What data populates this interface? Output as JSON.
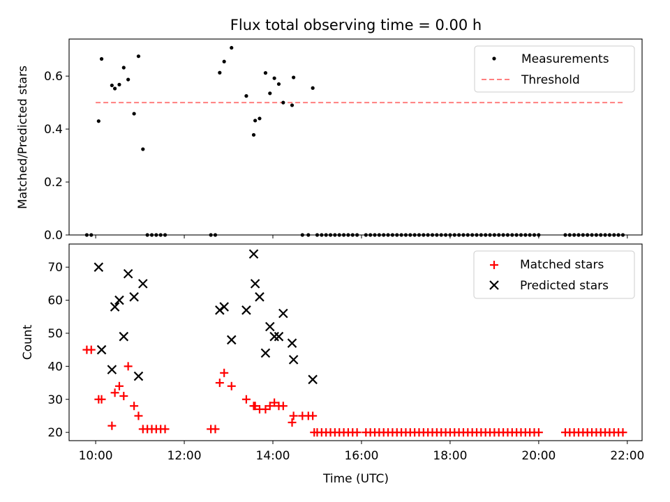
{
  "figure_title": "Flux total observing time = 0.00 h",
  "colors": {
    "measurements": "#000000",
    "threshold": "#ff7f7f",
    "matched": "#ff0000",
    "predicted": "#000000",
    "axes": "#000000"
  },
  "chart_data": [
    {
      "type": "scatter",
      "title": "Flux total observing time = 0.00 h",
      "xlabel": "",
      "ylabel": "Matched/Predicted stars",
      "x_unit": "hours UTC",
      "xlim": [
        "09:24",
        "22:20"
      ],
      "ylim": [
        0,
        0.74
      ],
      "y_ticks": [
        "0.0",
        "0.2",
        "0.4",
        "0.6"
      ],
      "grid": false,
      "legend_position": "top-right",
      "legend": [
        "Measurements",
        "Threshold"
      ],
      "series": [
        {
          "name": "Measurements",
          "marker": "dot",
          "points": [
            [
              "09:48",
              0.0
            ],
            [
              "09:54",
              0.0
            ],
            [
              "10:04",
              0.43
            ],
            [
              "10:08",
              0.665
            ],
            [
              "10:22",
              0.565
            ],
            [
              "10:26",
              0.553
            ],
            [
              "10:32",
              0.568
            ],
            [
              "10:38",
              0.632
            ],
            [
              "10:44",
              0.587
            ],
            [
              "10:52",
              0.458
            ],
            [
              "10:58",
              0.675
            ],
            [
              "11:04",
              0.324
            ],
            [
              "11:10",
              0.0
            ],
            [
              "11:16",
              0.0
            ],
            [
              "11:22",
              0.0
            ],
            [
              "11:28",
              0.0
            ],
            [
              "11:34",
              0.0
            ],
            [
              "12:36",
              0.0
            ],
            [
              "12:42",
              0.0
            ],
            [
              "12:48",
              0.613
            ],
            [
              "12:54",
              0.655
            ],
            [
              "13:04",
              0.707
            ],
            [
              "13:24",
              0.525
            ],
            [
              "13:34",
              0.378
            ],
            [
              "13:36",
              0.432
            ],
            [
              "13:42",
              0.44
            ],
            [
              "13:50",
              0.612
            ],
            [
              "13:56",
              0.535
            ],
            [
              "14:02",
              0.592
            ],
            [
              "14:08",
              0.57
            ],
            [
              "14:14",
              0.5
            ],
            [
              "14:26",
              0.49
            ],
            [
              "14:28",
              0.595
            ],
            [
              "14:40",
              0.0
            ],
            [
              "14:48",
              0.0
            ],
            [
              "14:54",
              0.555
            ],
            [
              "15:00",
              0.0
            ],
            [
              "15:06",
              0.0
            ],
            [
              "15:12",
              0.0
            ],
            [
              "15:18",
              0.0
            ],
            [
              "15:24",
              0.0
            ],
            [
              "15:30",
              0.0
            ],
            [
              "15:36",
              0.0
            ],
            [
              "15:42",
              0.0
            ],
            [
              "15:48",
              0.0
            ],
            [
              "15:54",
              0.0
            ],
            [
              "16:06",
              0.0
            ],
            [
              "16:12",
              0.0
            ],
            [
              "16:18",
              0.0
            ],
            [
              "16:24",
              0.0
            ],
            [
              "16:30",
              0.0
            ],
            [
              "16:36",
              0.0
            ],
            [
              "16:42",
              0.0
            ],
            [
              "16:48",
              0.0
            ],
            [
              "16:54",
              0.0
            ],
            [
              "17:00",
              0.0
            ],
            [
              "17:06",
              0.0
            ],
            [
              "17:12",
              0.0
            ],
            [
              "17:18",
              0.0
            ],
            [
              "17:24",
              0.0
            ],
            [
              "17:30",
              0.0
            ],
            [
              "17:36",
              0.0
            ],
            [
              "17:42",
              0.0
            ],
            [
              "17:48",
              0.0
            ],
            [
              "17:54",
              0.0
            ],
            [
              "18:00",
              0.0
            ],
            [
              "18:06",
              0.0
            ],
            [
              "18:12",
              0.0
            ],
            [
              "18:18",
              0.0
            ],
            [
              "18:24",
              0.0
            ],
            [
              "18:30",
              0.0
            ],
            [
              "18:36",
              0.0
            ],
            [
              "18:42",
              0.0
            ],
            [
              "18:48",
              0.0
            ],
            [
              "18:54",
              0.0
            ],
            [
              "19:00",
              0.0
            ],
            [
              "19:06",
              0.0
            ],
            [
              "19:12",
              0.0
            ],
            [
              "19:18",
              0.0
            ],
            [
              "19:24",
              0.0
            ],
            [
              "19:30",
              0.0
            ],
            [
              "19:36",
              0.0
            ],
            [
              "19:42",
              0.0
            ],
            [
              "19:48",
              0.0
            ],
            [
              "19:54",
              0.0
            ],
            [
              "20:00",
              0.0
            ],
            [
              "20:36",
              0.0
            ],
            [
              "20:42",
              0.0
            ],
            [
              "20:48",
              0.0
            ],
            [
              "20:54",
              0.0
            ],
            [
              "21:00",
              0.0
            ],
            [
              "21:06",
              0.0
            ],
            [
              "21:12",
              0.0
            ],
            [
              "21:18",
              0.0
            ],
            [
              "21:24",
              0.0
            ],
            [
              "21:30",
              0.0
            ],
            [
              "21:36",
              0.0
            ],
            [
              "21:42",
              0.0
            ],
            [
              "21:48",
              0.0
            ],
            [
              "21:54",
              0.0
            ]
          ]
        },
        {
          "name": "Threshold",
          "style": "dashed",
          "points": [
            [
              "10:00",
              0.5
            ],
            [
              "21:54",
              0.5
            ]
          ]
        }
      ]
    },
    {
      "type": "scatter",
      "title": "",
      "xlabel": "Time (UTC)",
      "ylabel": "Count",
      "x_unit": "hours UTC",
      "xlim": [
        "09:24",
        "22:20"
      ],
      "ylim": [
        17.5,
        77
      ],
      "y_ticks": [
        "20",
        "30",
        "40",
        "50",
        "60",
        "70"
      ],
      "x_ticks": [
        "10:00",
        "12:00",
        "14:00",
        "16:00",
        "18:00",
        "20:00",
        "22:00"
      ],
      "grid": false,
      "legend_position": "top-right",
      "legend": [
        "Matched stars",
        "Predicted stars"
      ],
      "series": [
        {
          "name": "Matched stars",
          "marker": "plus",
          "points": [
            [
              "09:48",
              45
            ],
            [
              "09:54",
              45
            ],
            [
              "10:04",
              30
            ],
            [
              "10:08",
              30
            ],
            [
              "10:22",
              22
            ],
            [
              "10:26",
              32
            ],
            [
              "10:32",
              34
            ],
            [
              "10:38",
              31
            ],
            [
              "10:44",
              40
            ],
            [
              "10:52",
              28
            ],
            [
              "10:58",
              25
            ],
            [
              "11:04",
              21
            ],
            [
              "11:10",
              21
            ],
            [
              "11:16",
              21
            ],
            [
              "11:22",
              21
            ],
            [
              "11:28",
              21
            ],
            [
              "11:34",
              21
            ],
            [
              "12:36",
              21
            ],
            [
              "12:42",
              21
            ],
            [
              "12:48",
              35
            ],
            [
              "12:54",
              38
            ],
            [
              "13:04",
              34
            ],
            [
              "13:24",
              30
            ],
            [
              "13:34",
              28
            ],
            [
              "13:36",
              28
            ],
            [
              "13:42",
              27
            ],
            [
              "13:50",
              27
            ],
            [
              "13:56",
              28
            ],
            [
              "14:02",
              29
            ],
            [
              "14:08",
              28
            ],
            [
              "14:14",
              28
            ],
            [
              "14:26",
              23
            ],
            [
              "14:28",
              25
            ],
            [
              "14:40",
              25
            ],
            [
              "14:48",
              25
            ],
            [
              "14:54",
              25
            ],
            [
              "14:56",
              20
            ],
            [
              "15:00",
              20
            ],
            [
              "15:06",
              20
            ],
            [
              "15:12",
              20
            ],
            [
              "15:18",
              20
            ],
            [
              "15:24",
              20
            ],
            [
              "15:30",
              20
            ],
            [
              "15:36",
              20
            ],
            [
              "15:42",
              20
            ],
            [
              "15:48",
              20
            ],
            [
              "15:54",
              20
            ],
            [
              "16:06",
              20
            ],
            [
              "16:12",
              20
            ],
            [
              "16:18",
              20
            ],
            [
              "16:24",
              20
            ],
            [
              "16:30",
              20
            ],
            [
              "16:36",
              20
            ],
            [
              "16:42",
              20
            ],
            [
              "16:48",
              20
            ],
            [
              "16:54",
              20
            ],
            [
              "17:00",
              20
            ],
            [
              "17:06",
              20
            ],
            [
              "17:12",
              20
            ],
            [
              "17:18",
              20
            ],
            [
              "17:24",
              20
            ],
            [
              "17:30",
              20
            ],
            [
              "17:36",
              20
            ],
            [
              "17:42",
              20
            ],
            [
              "17:48",
              20
            ],
            [
              "17:54",
              20
            ],
            [
              "18:00",
              20
            ],
            [
              "18:06",
              20
            ],
            [
              "18:12",
              20
            ],
            [
              "18:18",
              20
            ],
            [
              "18:24",
              20
            ],
            [
              "18:30",
              20
            ],
            [
              "18:36",
              20
            ],
            [
              "18:42",
              20
            ],
            [
              "18:48",
              20
            ],
            [
              "18:54",
              20
            ],
            [
              "19:00",
              20
            ],
            [
              "19:06",
              20
            ],
            [
              "19:12",
              20
            ],
            [
              "19:18",
              20
            ],
            [
              "19:24",
              20
            ],
            [
              "19:30",
              20
            ],
            [
              "19:36",
              20
            ],
            [
              "19:42",
              20
            ],
            [
              "19:48",
              20
            ],
            [
              "19:54",
              20
            ],
            [
              "20:00",
              20
            ],
            [
              "20:36",
              20
            ],
            [
              "20:42",
              20
            ],
            [
              "20:48",
              20
            ],
            [
              "20:54",
              20
            ],
            [
              "21:00",
              20
            ],
            [
              "21:06",
              20
            ],
            [
              "21:12",
              20
            ],
            [
              "21:18",
              20
            ],
            [
              "21:24",
              20
            ],
            [
              "21:30",
              20
            ],
            [
              "21:36",
              20
            ],
            [
              "21:42",
              20
            ],
            [
              "21:48",
              20
            ],
            [
              "21:54",
              20
            ]
          ]
        },
        {
          "name": "Predicted stars",
          "marker": "x",
          "points": [
            [
              "10:04",
              70
            ],
            [
              "10:08",
              45
            ],
            [
              "10:22",
              39
            ],
            [
              "10:26",
              58
            ],
            [
              "10:32",
              60
            ],
            [
              "10:38",
              49
            ],
            [
              "10:44",
              68
            ],
            [
              "10:52",
              61
            ],
            [
              "10:58",
              37
            ],
            [
              "11:04",
              65
            ],
            [
              "12:48",
              57
            ],
            [
              "12:54",
              58
            ],
            [
              "13:04",
              48
            ],
            [
              "13:24",
              57
            ],
            [
              "13:34",
              74
            ],
            [
              "13:36",
              65
            ],
            [
              "13:42",
              61
            ],
            [
              "13:50",
              44
            ],
            [
              "13:56",
              52
            ],
            [
              "14:02",
              49
            ],
            [
              "14:08",
              49
            ],
            [
              "14:14",
              56
            ],
            [
              "14:26",
              47
            ],
            [
              "14:28",
              42
            ],
            [
              "14:54",
              36
            ]
          ]
        }
      ]
    }
  ]
}
